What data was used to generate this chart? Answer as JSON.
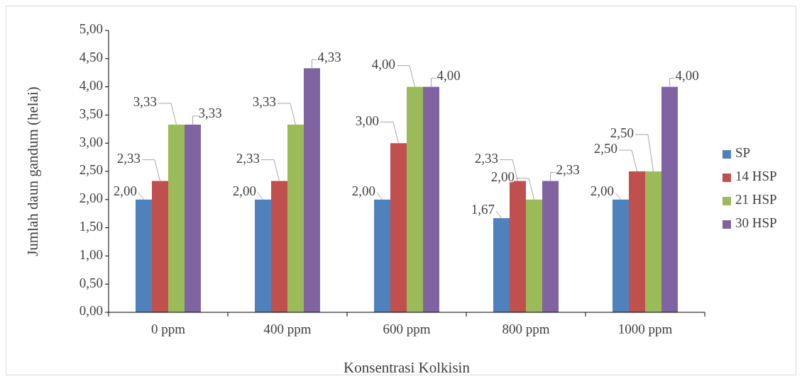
{
  "chart_data": {
    "type": "bar",
    "xlabel": "Konsentrasi Kolkisin",
    "ylabel": "Jumlah daun gandum (helai)",
    "categories": [
      "0 ppm",
      "400 ppm",
      "600 ppm",
      "800 ppm",
      "1000 ppm"
    ],
    "series": [
      {
        "name": "SP",
        "color": "#4f81bd",
        "values": [
          2.0,
          2.0,
          2.0,
          1.67,
          2.0
        ],
        "value_labels": [
          "2,00",
          "2,00",
          "2,00",
          "1,67",
          "2,00"
        ]
      },
      {
        "name": "14 HSP",
        "color": "#c0504d",
        "values": [
          2.33,
          2.33,
          3.0,
          2.33,
          2.5
        ],
        "value_labels": [
          "2,33",
          "2,33",
          "3,00",
          "2,33",
          "2,50"
        ]
      },
      {
        "name": "21 HSP",
        "color": "#9bbb59",
        "values": [
          3.33,
          3.33,
          4.0,
          2.0,
          2.5
        ],
        "value_labels": [
          "3,33",
          "3,33",
          "4,00",
          "2,00",
          "2,50"
        ]
      },
      {
        "name": "30 HSP",
        "color": "#8064a2",
        "values": [
          3.33,
          4.33,
          4.0,
          2.33,
          4.0
        ],
        "value_labels": [
          "3,33",
          "4,33",
          "4,00",
          "2,33",
          "4,00"
        ]
      }
    ],
    "ylim": [
      0,
      5
    ],
    "yticks": [
      {
        "value": 0,
        "label": "0,00"
      },
      {
        "value": 0.5,
        "label": "0,50"
      },
      {
        "value": 1,
        "label": "1,00"
      },
      {
        "value": 1.5,
        "label": "1,50"
      },
      {
        "value": 2,
        "label": "2,00"
      },
      {
        "value": 2.5,
        "label": "2,50"
      },
      {
        "value": 3,
        "label": "3,00"
      },
      {
        "value": 3.5,
        "label": "3,50"
      },
      {
        "value": 4,
        "label": "4,00"
      },
      {
        "value": 4.5,
        "label": "4,50"
      },
      {
        "value": 5,
        "label": "5,00"
      }
    ],
    "grid": false,
    "legend": "right"
  }
}
